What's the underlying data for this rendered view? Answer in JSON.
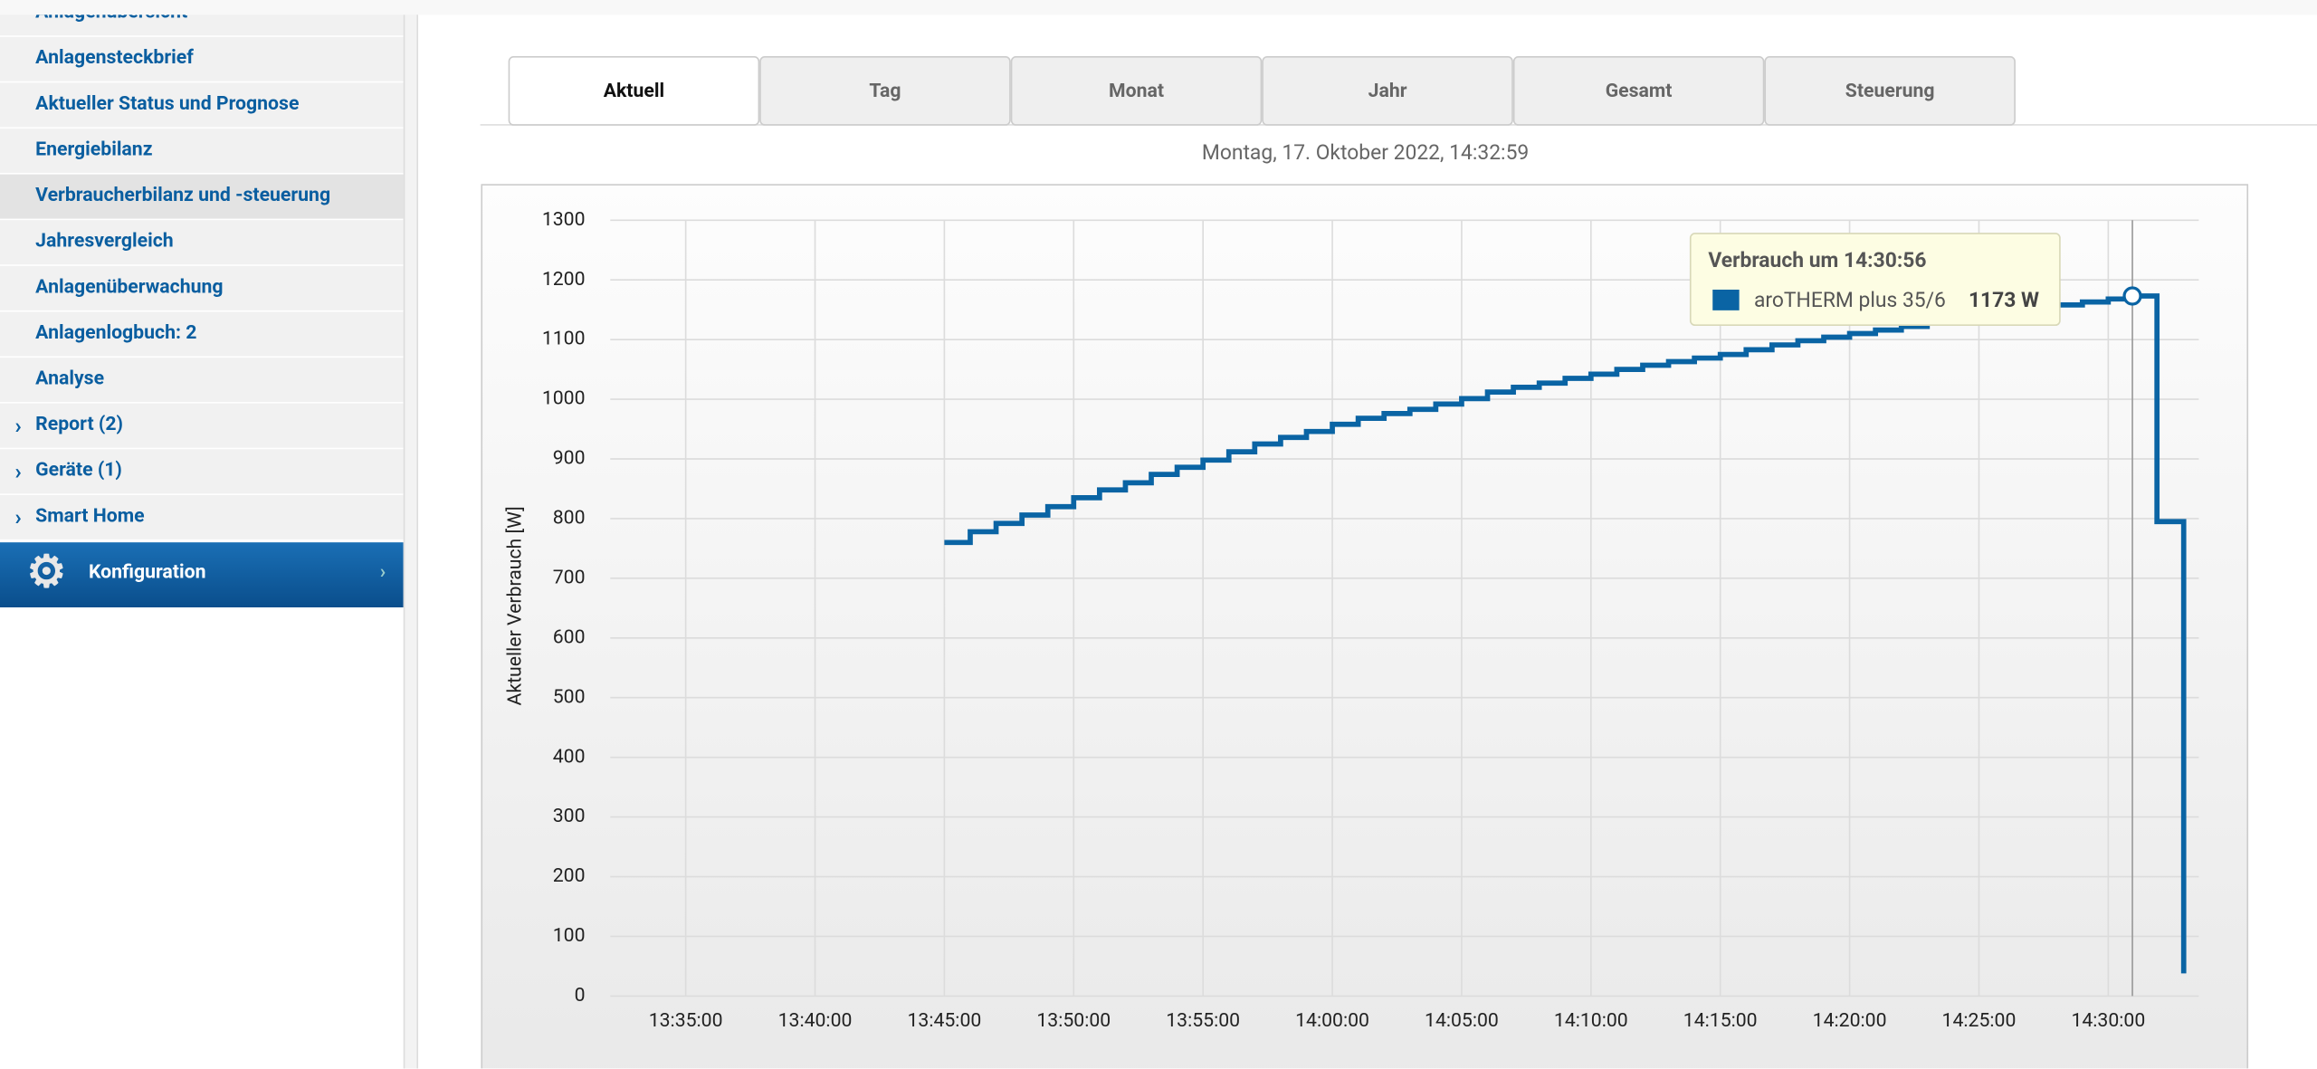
{
  "sidebar": {
    "items": [
      {
        "label": "Anlagenübersicht",
        "expandable": false
      },
      {
        "label": "Anlagensteckbrief",
        "expandable": false
      },
      {
        "label": "Aktueller Status und Prognose",
        "expandable": false
      },
      {
        "label": "Energiebilanz",
        "expandable": false
      },
      {
        "label": "Verbraucherbilanz und -steuerung",
        "expandable": false,
        "active": true
      },
      {
        "label": "Jahresvergleich",
        "expandable": false
      },
      {
        "label": "Anlagenüberwachung",
        "expandable": false
      },
      {
        "label": "Anlagenlogbuch: 2",
        "expandable": false
      },
      {
        "label": "Analyse",
        "expandable": false
      },
      {
        "label": "Report (2)",
        "expandable": true
      },
      {
        "label": "Geräte (1)",
        "expandable": true
      },
      {
        "label": "Smart Home",
        "expandable": true
      }
    ],
    "config": "Konfiguration"
  },
  "tabs": [
    {
      "label": "Aktuell",
      "active": true
    },
    {
      "label": "Tag"
    },
    {
      "label": "Monat"
    },
    {
      "label": "Jahr"
    },
    {
      "label": "Gesamt"
    },
    {
      "label": "Steuerung"
    }
  ],
  "timestamp": "Montag, 17. Oktober 2022, 14:32:59",
  "chart_data": {
    "type": "step-line",
    "y_label": "Aktueller Verbrauch [W]",
    "x": [
      "13:45:00",
      "13:46:00",
      "13:47:00",
      "13:48:00",
      "13:49:00",
      "13:50:00",
      "13:51:00",
      "13:52:00",
      "13:53:00",
      "13:54:00",
      "13:55:00",
      "13:56:00",
      "13:57:00",
      "13:58:00",
      "13:59:00",
      "14:00:00",
      "14:01:00",
      "14:02:00",
      "14:03:00",
      "14:04:00",
      "14:05:00",
      "14:06:00",
      "14:07:00",
      "14:08:00",
      "14:09:00",
      "14:10:00",
      "14:11:00",
      "14:12:00",
      "14:13:00",
      "14:14:00",
      "14:15:00",
      "14:16:00",
      "14:17:00",
      "14:18:00",
      "14:19:00",
      "14:20:00",
      "14:21:00",
      "14:22:00",
      "14:23:00",
      "14:24:00",
      "14:25:00",
      "14:26:00",
      "14:27:00",
      "14:28:00",
      "14:29:00",
      "14:30:00",
      "14:30:56",
      "14:31:53",
      "14:32:55"
    ],
    "series": [
      {
        "name": "aroTHERM plus 35/6",
        "color": "#0a64a4",
        "values": [
          760,
          778,
          792,
          806,
          820,
          835,
          848,
          860,
          874,
          886,
          898,
          912,
          925,
          936,
          946,
          958,
          968,
          976,
          983,
          992,
          1001,
          1012,
          1020,
          1027,
          1035,
          1042,
          1050,
          1057,
          1063,
          1069,
          1075,
          1083,
          1091,
          1098,
          1104,
          1110,
          1116,
          1122,
          1128,
          1134,
          1140,
          1146,
          1152,
          1158,
          1163,
          1168,
          1173,
          795,
          38
        ]
      }
    ],
    "xlim": [
      "13:32:05",
      "14:33:30"
    ],
    "xticks": [
      "13:35:00",
      "13:40:00",
      "13:45:00",
      "13:50:00",
      "13:55:00",
      "14:00:00",
      "14:05:00",
      "14:10:00",
      "14:15:00",
      "14:20:00",
      "14:25:00",
      "14:30:00"
    ],
    "ylim": [
      0,
      1300
    ],
    "yticks": [
      0,
      100,
      200,
      300,
      400,
      500,
      600,
      700,
      800,
      900,
      1000,
      1100,
      1200,
      1300
    ],
    "grid": true,
    "tooltip": {
      "title": "Verbrauch um 14:30:56",
      "value": 1173,
      "value_label": "1173 W"
    }
  }
}
